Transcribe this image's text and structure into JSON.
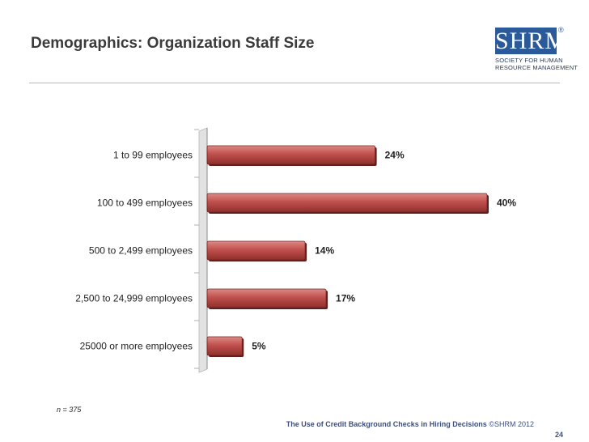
{
  "page": {
    "title": "Demographics: Organization Staff Size",
    "footnote": "n = 375",
    "footer_title": "The Use of Credit Background Checks in Hiring Decisions",
    "footer_copyright": "©SHRM 2012",
    "page_number": "24"
  },
  "logo": {
    "mark": "SHRM",
    "reg": "®",
    "line1": "SOCIETY FOR HUMAN",
    "line2": "RESOURCE MANAGEMENT"
  },
  "chart_data": {
    "type": "bar",
    "orientation": "horizontal",
    "categories": [
      "1 to 99 employees",
      "100 to 499 employees",
      "500 to 2,499 employees",
      "2,500 to 24,999 employees",
      "25000 or more employees"
    ],
    "values": [
      24,
      40,
      14,
      17,
      5
    ],
    "value_labels": [
      "24%",
      "40%",
      "14%",
      "17%",
      "5%"
    ],
    "xlim": [
      0,
      40
    ],
    "bar_color": "#c0504d",
    "title": "",
    "xlabel": "",
    "ylabel": ""
  }
}
